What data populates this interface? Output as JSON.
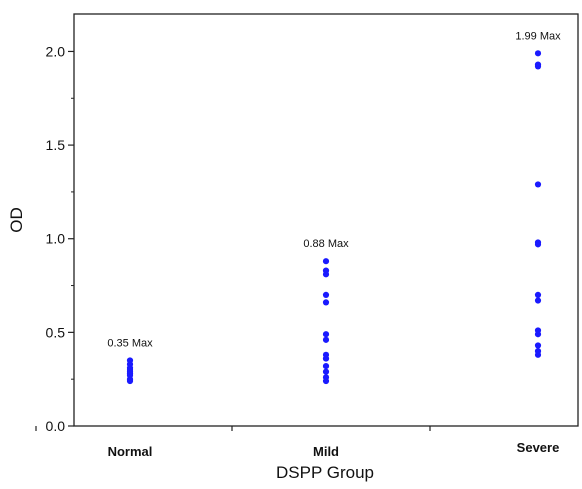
{
  "chart_data": {
    "type": "scatter",
    "title": "",
    "xlabel": "DSPP Group",
    "ylabel": "OD",
    "categories": [
      "Normal",
      "Mild",
      "Severe"
    ],
    "ylim": [
      0,
      2.2
    ],
    "yticks": [
      0.0,
      0.5,
      1.0,
      1.5,
      2.0
    ],
    "ytick_labels": [
      "0.0",
      "0.5",
      "1.0",
      "1.5",
      "2.0"
    ],
    "grid": false,
    "point_color": "#1a1aff",
    "series": [
      {
        "category": "Normal",
        "values": [
          0.35,
          0.33,
          0.31,
          0.3,
          0.29,
          0.28,
          0.27,
          0.25,
          0.24
        ]
      },
      {
        "category": "Mild",
        "values": [
          0.88,
          0.83,
          0.81,
          0.7,
          0.66,
          0.49,
          0.46,
          0.38,
          0.36,
          0.32,
          0.29,
          0.26,
          0.24
        ]
      },
      {
        "category": "Severe",
        "values": [
          1.99,
          1.93,
          1.92,
          1.29,
          0.98,
          0.97,
          0.7,
          0.67,
          0.51,
          0.49,
          0.43,
          0.4,
          0.38
        ]
      }
    ],
    "annotations": [
      {
        "category": "Normal",
        "text": "0.35 Max"
      },
      {
        "category": "Mild",
        "text": "0.88 Max"
      },
      {
        "category": "Severe",
        "text": "1.99 Max"
      }
    ]
  }
}
